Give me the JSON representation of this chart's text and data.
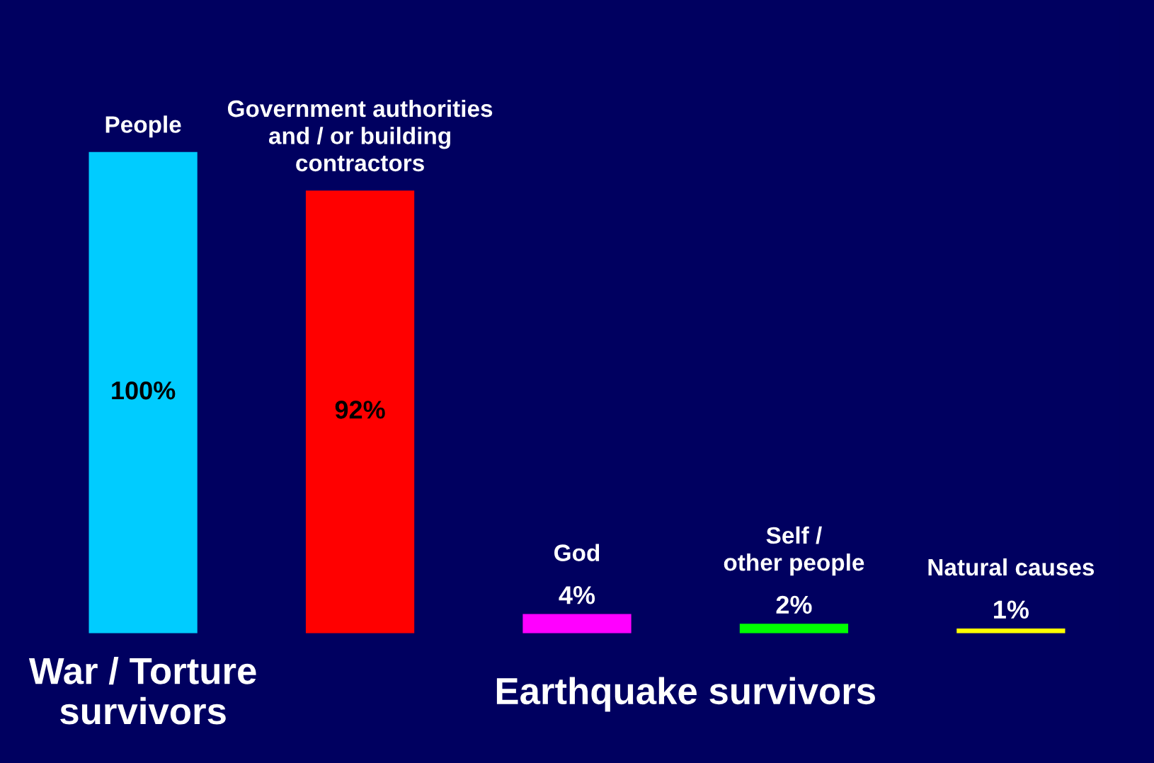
{
  "chart_data": {
    "type": "bar",
    "categories": [
      "People",
      "Government authorities\nand / or building\ncontractors",
      "God",
      "Self /\nother people",
      "Natural causes"
    ],
    "values": [
      100,
      92,
      4,
      2,
      1
    ],
    "colors": [
      "#00ccff",
      "#ff0000",
      "#ff00ff",
      "#00ff00",
      "#ffff00"
    ],
    "value_labels": [
      "100%",
      "92%",
      "4%",
      "2%",
      "1%"
    ],
    "annotations": [
      "War / Torture\nsurvivors",
      "Earthquake survivors"
    ]
  }
}
